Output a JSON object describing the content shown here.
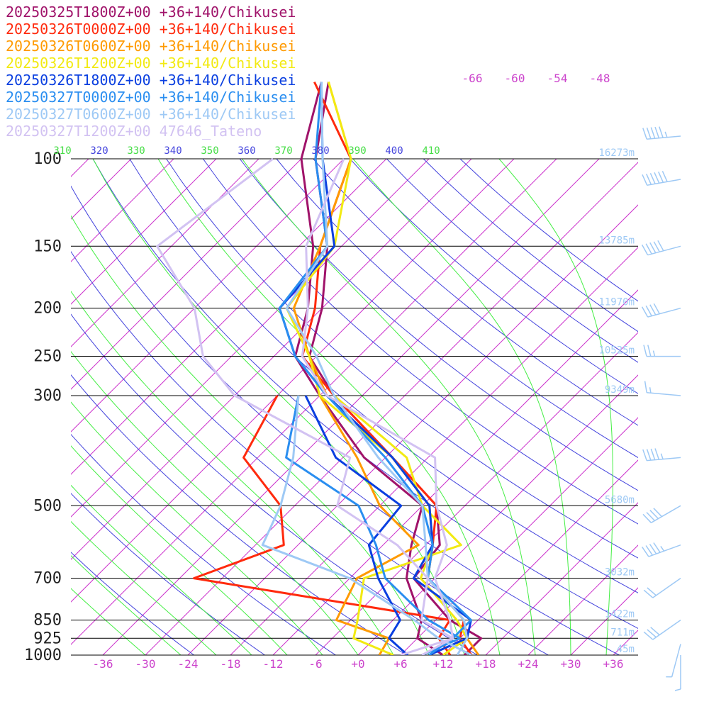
{
  "legend": [
    {
      "label": "20250325T1800Z+00 +36+140/Chikusei",
      "color": "#a0136a"
    },
    {
      "label": "20250326T0000Z+00 +36+140/Chikusei",
      "color": "#ff2a0d"
    },
    {
      "label": "20250326T0600Z+00 +36+140/Chikusei",
      "color": "#ff9a00"
    },
    {
      "label": "20250326T1200Z+00 +36+140/Chikusei",
      "color": "#f2ea12"
    },
    {
      "label": "20250326T1800Z+00 +36+140/Chikusei",
      "color": "#0a3fe0"
    },
    {
      "label": "20250327T0000Z+00 +36+140/Chikusei",
      "color": "#2a8ef0"
    },
    {
      "label": "20250327T0600Z+00 +36+140/Chikusei",
      "color": "#9ec9f5"
    },
    {
      "label": "20250327T1200Z+00 47646_Tateno",
      "color": "#d2c2f2"
    }
  ],
  "colors": {
    "isotherm": "#cc33cc",
    "dry_adiabat": "#4444dd",
    "moist_adiabat": "#44ee44",
    "isobar": "#000000",
    "height_label": "#9ec9f5",
    "wind_barb": "#9ec9f5",
    "temp_tick_label": "#cc44cc",
    "theta_label_a": "#4444dd",
    "theta_label_b": "#44dd44"
  },
  "chart_data": {
    "type": "skew-t",
    "yaxis": {
      "label": "",
      "unit": "hPa",
      "ticks": [
        100,
        150,
        200,
        250,
        300,
        500,
        700,
        850,
        925,
        1000
      ]
    },
    "xaxis": {
      "label": "",
      "unit": "°C",
      "ticks": [
        "-36",
        "-30",
        "-24",
        "-18",
        "-12",
        "-6",
        "+0",
        "+6",
        "+12",
        "+18",
        "+24",
        "+30",
        "+36"
      ]
    },
    "upper_temp_labels": [
      "-66",
      "-60",
      "-54",
      "-48"
    ],
    "theta_labels": [
      "310",
      "320",
      "330",
      "340",
      "350",
      "360",
      "370",
      "380",
      "390",
      "400",
      "410"
    ],
    "height_labels": [
      {
        "p": 100,
        "text": "16273m"
      },
      {
        "p": 150,
        "text": "13785m"
      },
      {
        "p": 200,
        "text": "11970m"
      },
      {
        "p": 250,
        "text": "10525m"
      },
      {
        "p": 300,
        "text": "9349m"
      },
      {
        "p": 500,
        "text": "5680m"
      },
      {
        "p": 700,
        "text": "3032m"
      },
      {
        "p": 850,
        "text": "1422m"
      },
      {
        "p": 925,
        "text": "711m"
      },
      {
        "p": 1000,
        "text": "45m"
      }
    ],
    "grid": true,
    "legend_position": "top-left",
    "series": [
      {
        "name": "20250325T1800Z+00 +36+140/Chikusei",
        "color": "#a0136a",
        "temperature": [
          [
            1000,
            15
          ],
          [
            925,
            15
          ],
          [
            850,
            8
          ],
          [
            700,
            -3
          ],
          [
            600,
            -4
          ],
          [
            500,
            -10
          ],
          [
            400,
            -23
          ],
          [
            300,
            -40
          ],
          [
            250,
            -49
          ],
          [
            200,
            -54
          ],
          [
            150,
            -62
          ],
          [
            100,
            -76
          ],
          [
            70,
            -85
          ]
        ],
        "dewpoint": [
          [
            1000,
            12
          ],
          [
            925,
            6
          ],
          [
            850,
            4
          ],
          [
            700,
            -4
          ],
          [
            600,
            -8
          ],
          [
            500,
            -12
          ],
          [
            400,
            -27
          ],
          [
            300,
            -42
          ],
          [
            250,
            -51
          ],
          [
            200,
            -56
          ],
          [
            150,
            -64
          ],
          [
            100,
            -78
          ],
          [
            70,
            -86
          ]
        ]
      },
      {
        "name": "20250326T0000Z+00 +36+140/Chikusei",
        "color": "#ff2a0d",
        "temperature": [
          [
            1000,
            16
          ],
          [
            925,
            12
          ],
          [
            850,
            10
          ],
          [
            700,
            -1
          ],
          [
            600,
            -5
          ],
          [
            500,
            -10
          ],
          [
            400,
            -23
          ],
          [
            300,
            -40
          ],
          [
            250,
            -50
          ],
          [
            200,
            -55
          ],
          [
            150,
            -63
          ],
          [
            100,
            -71
          ],
          [
            70,
            -87
          ]
        ],
        "dewpoint": [
          [
            1000,
            13
          ],
          [
            925,
            9
          ],
          [
            850,
            8
          ],
          [
            700,
            -34
          ],
          [
            600,
            -26
          ],
          [
            500,
            -32
          ],
          [
            400,
            -44
          ],
          [
            300,
            -48
          ]
        ]
      },
      {
        "name": "20250326T0600Z+00 +36+140/Chikusei",
        "color": "#ff9a00",
        "temperature": [
          [
            1000,
            17
          ],
          [
            925,
            13
          ],
          [
            850,
            10
          ],
          [
            700,
            -1
          ],
          [
            600,
            -5
          ],
          [
            500,
            -11
          ],
          [
            400,
            -23
          ],
          [
            300,
            -41
          ],
          [
            250,
            -49
          ],
          [
            200,
            -58
          ],
          [
            150,
            -63
          ],
          [
            100,
            -71
          ],
          [
            70,
            -85
          ]
        ],
        "dewpoint": [
          [
            1000,
            3
          ],
          [
            925,
            2
          ],
          [
            850,
            -8
          ],
          [
            700,
            -11
          ],
          [
            600,
            -7
          ],
          [
            500,
            -18
          ],
          [
            400,
            -28
          ],
          [
            300,
            -42
          ]
        ]
      },
      {
        "name": "20250326T1200Z+00 +36+140/Chikusei",
        "color": "#f2ea12",
        "temperature": [
          [
            1000,
            12
          ],
          [
            925,
            13
          ],
          [
            850,
            9
          ],
          [
            700,
            -2
          ],
          [
            600,
            -5
          ],
          [
            500,
            -11
          ],
          [
            400,
            -23
          ],
          [
            300,
            -42
          ],
          [
            250,
            -49
          ],
          [
            200,
            -59
          ],
          [
            150,
            -61
          ],
          [
            100,
            -71
          ],
          [
            70,
            -85
          ]
        ],
        "dewpoint": [
          [
            1000,
            5
          ],
          [
            925,
            -3
          ],
          [
            850,
            -5
          ],
          [
            700,
            -10
          ],
          [
            600,
            -1
          ],
          [
            500,
            -12
          ],
          [
            400,
            -21
          ],
          [
            300,
            -40
          ]
        ]
      },
      {
        "name": "20250326T1800Z+00 +36+140/Chikusei",
        "color": "#0a3fe0",
        "temperature": [
          [
            1000,
            10
          ],
          [
            925,
            13
          ],
          [
            850,
            11
          ],
          [
            700,
            -3
          ],
          [
            600,
            -5
          ],
          [
            500,
            -11
          ],
          [
            400,
            -23
          ],
          [
            300,
            -41
          ],
          [
            250,
            -51
          ],
          [
            200,
            -60
          ],
          [
            150,
            -61
          ],
          [
            100,
            -75
          ],
          [
            70,
            -86
          ]
        ],
        "dewpoint": [
          [
            1000,
            7
          ],
          [
            925,
            2
          ],
          [
            850,
            1
          ],
          [
            700,
            -8
          ],
          [
            600,
            -14
          ],
          [
            500,
            -15
          ],
          [
            400,
            -31
          ],
          [
            300,
            -44
          ]
        ]
      },
      {
        "name": "20250327T0000Z+00 +36+140/Chikusei",
        "color": "#2a8ef0",
        "temperature": [
          [
            1000,
            10
          ],
          [
            925,
            11
          ],
          [
            850,
            11
          ],
          [
            700,
            -1
          ],
          [
            600,
            -5
          ],
          [
            500,
            -12
          ],
          [
            400,
            -24
          ],
          [
            300,
            -41
          ],
          [
            250,
            -51
          ],
          [
            200,
            -60
          ],
          [
            150,
            -62
          ],
          [
            100,
            -76
          ],
          [
            70,
            -86
          ]
        ],
        "dewpoint": [
          [
            1000,
            9
          ],
          [
            925,
            12
          ],
          [
            850,
            5
          ],
          [
            700,
            -7
          ],
          [
            600,
            -13
          ],
          [
            500,
            -21
          ],
          [
            400,
            -38
          ],
          [
            300,
            -45
          ]
        ]
      },
      {
        "name": "20250327T0600Z+00 +36+140/Chikusei",
        "color": "#9ec9f5",
        "temperature": [
          [
            1000,
            14
          ],
          [
            925,
            13
          ],
          [
            850,
            10
          ],
          [
            700,
            -1
          ],
          [
            600,
            -6
          ],
          [
            500,
            -12
          ],
          [
            400,
            -25
          ],
          [
            300,
            -40
          ],
          [
            250,
            -48
          ],
          [
            200,
            -59
          ],
          [
            150,
            -62
          ],
          [
            100,
            -75
          ],
          [
            70,
            -86
          ]
        ],
        "dewpoint": [
          [
            1000,
            16
          ],
          [
            925,
            9
          ],
          [
            850,
            3
          ],
          [
            700,
            -12
          ],
          [
            600,
            -29
          ],
          [
            500,
            -32
          ],
          [
            400,
            -37
          ],
          [
            300,
            -45
          ]
        ]
      },
      {
        "name": "20250327T1200Z+00 47646_Tateno",
        "color": "#d2c2f2",
        "temperature": [
          [
            1000,
            9
          ],
          [
            925,
            11
          ],
          [
            850,
            8
          ],
          [
            700,
            0
          ],
          [
            600,
            -3
          ],
          [
            500,
            -10
          ],
          [
            400,
            -17
          ],
          [
            300,
            -41
          ],
          [
            250,
            -50
          ],
          [
            200,
            -56
          ],
          [
            150,
            -65
          ],
          [
            100,
            -72
          ]
        ],
        "dewpoint": [
          [
            1000,
            6
          ],
          [
            925,
            11
          ],
          [
            850,
            4
          ],
          [
            700,
            -1
          ],
          [
            600,
            -10
          ],
          [
            500,
            -24
          ],
          [
            400,
            -29
          ],
          [
            300,
            -54
          ],
          [
            250,
            -64
          ],
          [
            200,
            -72
          ],
          [
            150,
            -86
          ],
          [
            100,
            -82
          ]
        ]
      }
    ],
    "wind_barbs": [
      {
        "p": 90,
        "speed_kt": 55,
        "dir_deg": 265
      },
      {
        "p": 110,
        "speed_kt": 60,
        "dir_deg": 260
      },
      {
        "p": 150,
        "speed_kt": 50,
        "dir_deg": 255
      },
      {
        "p": 200,
        "speed_kt": 40,
        "dir_deg": 255
      },
      {
        "p": 250,
        "speed_kt": 25,
        "dir_deg": 270
      },
      {
        "p": 300,
        "speed_kt": 15,
        "dir_deg": 275
      },
      {
        "p": 400,
        "speed_kt": 45,
        "dir_deg": 265
      },
      {
        "p": 500,
        "speed_kt": 40,
        "dir_deg": 240
      },
      {
        "p": 600,
        "speed_kt": 45,
        "dir_deg": 250
      },
      {
        "p": 700,
        "speed_kt": 20,
        "dir_deg": 235
      },
      {
        "p": 850,
        "speed_kt": 30,
        "dir_deg": 235
      },
      {
        "p": 950,
        "speed_kt": 5,
        "dir_deg": 195
      },
      {
        "p": 1000,
        "speed_kt": 5,
        "dir_deg": 180
      }
    ]
  }
}
